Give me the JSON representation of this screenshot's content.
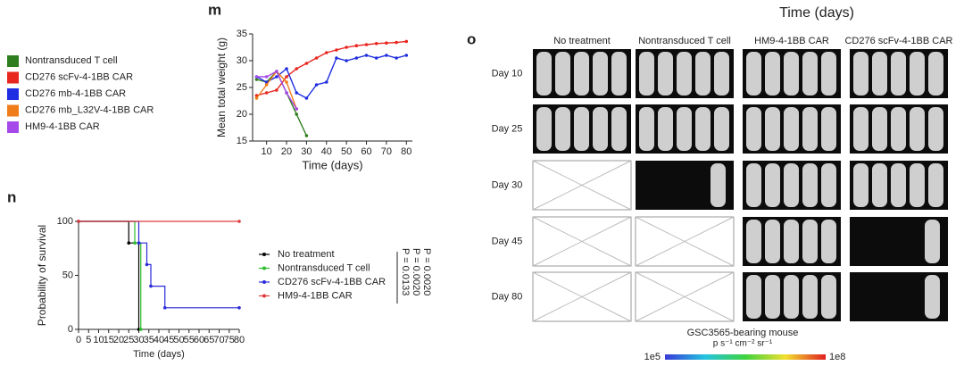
{
  "chart_data": [
    {
      "type": "line",
      "panel_label": "m",
      "xlabel": "Time (days)",
      "ylabel": "Mean total weight (g)",
      "x": [
        5,
        10,
        15,
        20,
        25,
        30,
        35,
        40,
        45,
        50,
        55,
        60,
        65,
        70,
        75,
        80
      ],
      "xlim": [
        3,
        83
      ],
      "xticks": [
        10,
        20,
        30,
        40,
        50,
        60,
        70,
        80
      ],
      "ylim": [
        15,
        35
      ],
      "yticks": [
        15,
        20,
        25,
        30,
        35
      ],
      "series": [
        {
          "name": "Nontransduced T cell",
          "color": "#2e7d1e",
          "values": [
            26.5,
            26,
            28,
            24,
            20,
            16,
            null,
            null,
            null,
            null,
            null,
            null,
            null,
            null,
            null,
            null
          ]
        },
        {
          "name": "CD276 scFv-4-1BB CAR",
          "color": "#e8271f",
          "values": [
            23.5,
            24,
            24.5,
            27,
            28.5,
            29.5,
            30.5,
            31.5,
            32,
            32.5,
            32.8,
            33,
            33.2,
            33.3,
            33.4,
            33.6
          ]
        },
        {
          "name": "CD276 mb-4-1BB CAR",
          "color": "#1f2ee0",
          "values": [
            27,
            26,
            27,
            28.5,
            24,
            23,
            25.5,
            26,
            30.5,
            30,
            30.5,
            31,
            30.5,
            31,
            30.5,
            31
          ]
        },
        {
          "name": "CD276 mb_L32V-4-1BB CAR",
          "color": "#f07c1a",
          "values": [
            23,
            25.5,
            28,
            26,
            21,
            null,
            null,
            null,
            null,
            null,
            null,
            null,
            null,
            null,
            null,
            null
          ]
        },
        {
          "name": "HM9-4-1BB CAR",
          "color": "#a54ae8",
          "values": [
            27,
            27,
            28,
            24,
            21,
            null,
            null,
            null,
            null,
            null,
            null,
            null,
            null,
            null,
            null,
            null
          ]
        }
      ]
    },
    {
      "type": "step",
      "panel_label": "n",
      "xlabel": "Time (days)",
      "ylabel": "Probability of survival",
      "xlim": [
        0,
        80
      ],
      "xticks": [
        0,
        5,
        10,
        15,
        20,
        25,
        30,
        35,
        40,
        45,
        50,
        55,
        60,
        65,
        70,
        75,
        80
      ],
      "ylim": [
        0,
        100
      ],
      "yticks": [
        0,
        50,
        100
      ],
      "series": [
        {
          "name": "No treatment",
          "color": "#000000",
          "x": [
            0,
            25,
            30
          ],
          "values": [
            100,
            80,
            0
          ]
        },
        {
          "name": "Nontransduced T cell",
          "color": "#2bbd2b",
          "x": [
            0,
            28,
            31
          ],
          "values": [
            100,
            80,
            0
          ]
        },
        {
          "name": "CD276 scFv-4-1BB CAR",
          "color": "#2a2ad8",
          "x": [
            0,
            30,
            34,
            36,
            43,
            80
          ],
          "values": [
            100,
            80,
            60,
            40,
            20,
            20
          ]
        },
        {
          "name": "HM9-4-1BB CAR",
          "color": "#e03a3a",
          "x": [
            0,
            80
          ],
          "values": [
            100,
            100
          ]
        }
      ],
      "annotations": [
        "P = 0.0020",
        "P = 0.0020",
        "P = 0.0133"
      ]
    }
  ],
  "panel_o": {
    "label": "o",
    "title": "Time (days)",
    "columns": [
      "No treatment",
      "Nontransduced T cell",
      "HM9-4-1BB CAR",
      "CD276 scFv-4-1BB CAR"
    ],
    "rows": [
      "Day 10",
      "Day 25",
      "Day 30",
      "Day 45",
      "Day 80"
    ],
    "mice": [
      [
        5,
        5,
        5,
        5
      ],
      [
        5,
        5,
        5,
        5
      ],
      [
        0,
        1,
        5,
        5
      ],
      [
        0,
        0,
        5,
        1
      ],
      [
        0,
        0,
        5,
        1
      ]
    ],
    "caption": "GSC3565-bearing mouse",
    "unit": "p s⁻¹ cm⁻² sr⁻¹",
    "scale_min": "1e5",
    "scale_max": "1e8"
  }
}
